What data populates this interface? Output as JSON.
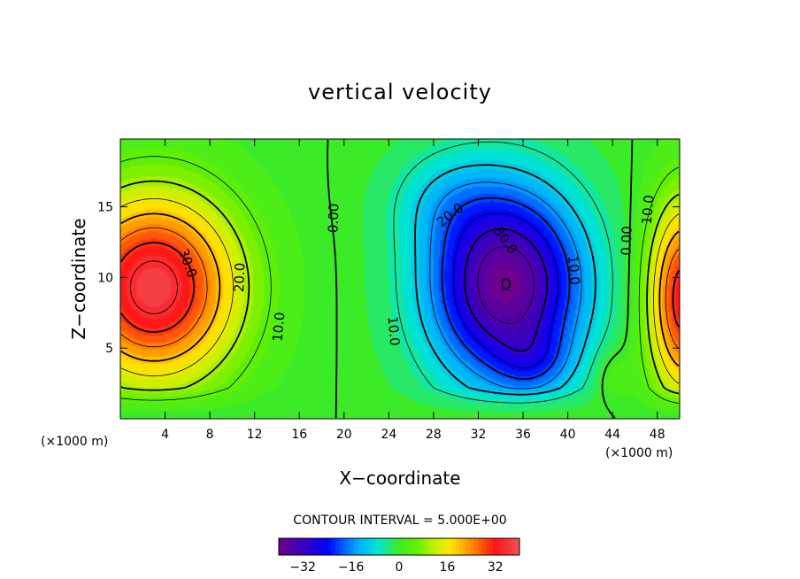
{
  "chart_data": {
    "type": "heatmap",
    "subtype": "filled-contour",
    "title": "vertical velocity",
    "xlabel": "X−coordinate",
    "ylabel": "Z−coordinate",
    "x_unit": "(×1000 m)",
    "y_unit": "(×1000 m)",
    "xlim": [
      0,
      50
    ],
    "ylim": [
      0,
      19.8
    ],
    "x_ticks": [
      4,
      8,
      12,
      16,
      20,
      24,
      28,
      32,
      36,
      40,
      44,
      48
    ],
    "y_ticks": [
      5,
      10,
      15
    ],
    "contour_interval_label": "CONTOUR INTERVAL = 5.000E+00",
    "contour_interval": 5.0,
    "value_range": [
      -40,
      40
    ],
    "colorbar_ticks": [
      -32,
      -16,
      0,
      16,
      32
    ],
    "features": [
      {
        "kind": "updraft",
        "x": 3,
        "z": 9,
        "peak": 36
      },
      {
        "kind": "downdraft",
        "x": 35,
        "z": 9,
        "peak": -37
      },
      {
        "kind": "updraft",
        "x": 50,
        "z": 9,
        "peak": 30
      }
    ],
    "contour_labels": [
      {
        "text": "30.0",
        "x": 6,
        "z": 11,
        "angle": 70
      },
      {
        "text": "20.0",
        "x": 10.7,
        "z": 10,
        "angle": -88
      },
      {
        "text": "10.0",
        "x": 14.2,
        "z": 6.5,
        "angle": -85
      },
      {
        "text": "0.00",
        "x": 19.1,
        "z": 14.2,
        "angle": -88
      },
      {
        "text": "20.0",
        "x": 29.5,
        "z": 14.4,
        "angle": -38
      },
      {
        "text": "30.0",
        "x": 34.4,
        "z": 12.6,
        "angle": 55
      },
      {
        "text": "10.0",
        "x": 40.5,
        "z": 10.5,
        "angle": 85
      },
      {
        "text": "10.0",
        "x": 24.4,
        "z": 6.2,
        "angle": 85
      },
      {
        "text": "0.00",
        "x": 45.3,
        "z": 12.6,
        "angle": -88
      },
      {
        "text": "10.0",
        "x": 47.2,
        "z": 14.8,
        "angle": -85
      }
    ]
  }
}
